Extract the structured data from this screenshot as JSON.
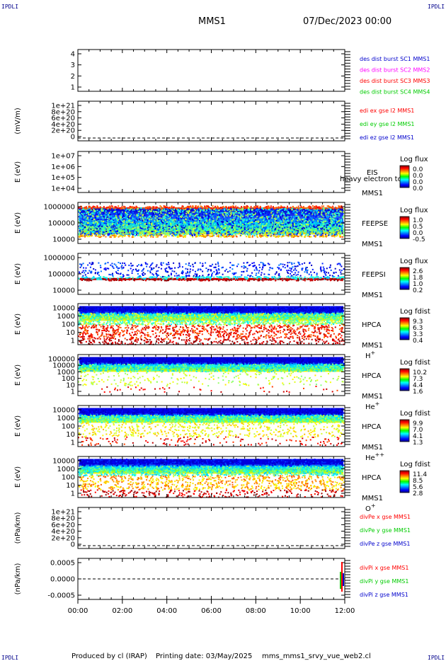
{
  "header": {
    "corner_label": "IPDLI",
    "mission": "MMS1",
    "date": "07/Dec/2023 00:00"
  },
  "footer": {
    "produced_by": "Produced by cl (IRAP)",
    "printing_date": "Printing date: 03/May/2025",
    "script": "mms_mms1_srvy_vue_web2.cl"
  },
  "colors": {
    "blue": "#0000cc",
    "magenta": "#ff00ff",
    "red": "#ff0000",
    "green": "#00cc00"
  },
  "chart_data": [
    {
      "id": "burst",
      "type": "line",
      "ylabel": "",
      "yticks": [
        "4",
        "3",
        "2",
        "1"
      ],
      "legend": [
        {
          "text": "des dist burst SC1 MMS1",
          "color": "#0000cc"
        },
        {
          "text": "des dist burst SC2 MMS2",
          "color": "#ff00ff"
        },
        {
          "text": "des dist burst SC3 MMS3",
          "color": "#ff0000"
        },
        {
          "text": "des dist burst SC4 MMS4",
          "color": "#00cc00"
        }
      ]
    },
    {
      "id": "edi",
      "type": "line",
      "ylabel": "(mV/m)",
      "yticks": [
        "1e+21",
        "8e+20",
        "6e+20",
        "4e+20",
        "2e+20",
        "0"
      ],
      "zero_line": true,
      "legend": [
        {
          "text": "edi ex gse l2 MMS1",
          "color": "#ff0000"
        },
        {
          "text": "edi ey gse l2 MMS1",
          "color": "#00cc00"
        },
        {
          "text": "edi ez gse l2 MMS1",
          "color": "#0000cc"
        }
      ]
    },
    {
      "id": "eis",
      "type": "heatmap",
      "ylabel": "E (eV)",
      "yticks": [
        "1e+07",
        "1e+06",
        "1e+05",
        "1e+04"
      ],
      "instrument": [
        "EIS",
        "MMS1"
      ],
      "overlay": "heavy electron to",
      "colorbar": {
        "title": "Log flux",
        "labels": [
          "0.0",
          "0.0",
          "0.0",
          "0.0"
        ]
      },
      "empty": true
    },
    {
      "id": "feepse",
      "type": "heatmap",
      "ylabel": "E (eV)",
      "yticks": [
        "1000000",
        "100000",
        "10000"
      ],
      "instrument": [
        "FEEPSE",
        "MMS1"
      ],
      "colorbar": {
        "title": "Log flux",
        "labels": [
          "1.0",
          "0.5",
          "0.0",
          "-0.5"
        ]
      },
      "pattern": "feepse"
    },
    {
      "id": "feepsi",
      "type": "heatmap",
      "ylabel": "E (eV)",
      "yticks": [
        "1000000",
        "100000",
        "10000"
      ],
      "instrument": [
        "FEEPSI",
        "MMS1"
      ],
      "colorbar": {
        "title": "Log flux",
        "labels": [
          "2.6",
          "1.8",
          "1.0",
          "0.2"
        ]
      },
      "pattern": "feepsi"
    },
    {
      "id": "hpca_h",
      "type": "heatmap",
      "ylabel": "E (eV)",
      "yticks": [
        "10000",
        "1000",
        "100",
        "10",
        "1"
      ],
      "instrument": [
        "HPCA",
        "MMS1"
      ],
      "species": "H",
      "charge": "+",
      "colorbar": {
        "title": "Log fdist",
        "labels": [
          "9.3",
          "6.3",
          "3.3",
          "0.4"
        ]
      },
      "pattern": "hpca_h"
    },
    {
      "id": "hpca_he",
      "type": "heatmap",
      "ylabel": "E (eV)",
      "yticks": [
        "100000",
        "10000",
        "1000",
        "100",
        "10",
        "1"
      ],
      "instrument": [
        "HPCA",
        "MMS1"
      ],
      "species": "He",
      "charge": "+",
      "colorbar": {
        "title": "Log fdist",
        "labels": [
          "10.2",
          "7.3",
          "4.4",
          "1.6"
        ]
      },
      "pattern": "hpca_he"
    },
    {
      "id": "hpca_he2",
      "type": "heatmap",
      "ylabel": "E (eV)",
      "yticks": [
        "10000",
        "1000",
        "100",
        "10",
        "1"
      ],
      "instrument": [
        "HPCA",
        "MMS1"
      ],
      "species": "He",
      "charge": "++",
      "colorbar": {
        "title": "Log fdist",
        "labels": [
          "9.9",
          "7.0",
          "4.1",
          "1.3"
        ]
      },
      "pattern": "hpca_he2"
    },
    {
      "id": "hpca_o",
      "type": "heatmap",
      "ylabel": "E (eV)",
      "yticks": [
        "10000",
        "1000",
        "100",
        "10",
        "1"
      ],
      "instrument": [
        "HPCA",
        "MMS1"
      ],
      "species": "O",
      "charge": "+",
      "colorbar": {
        "title": "Log fdist",
        "labels": [
          "11.4",
          "8.5",
          "5.6",
          "2.8"
        ]
      },
      "pattern": "hpca_o"
    },
    {
      "id": "divpe",
      "type": "line",
      "ylabel": "(nPa/km)",
      "yticks": [
        "1e+21",
        "8e+20",
        "6e+20",
        "4e+20",
        "2e+20",
        "0"
      ],
      "zero_line": true,
      "legend": [
        {
          "text": "divPe x gse MMS1",
          "color": "#ff0000"
        },
        {
          "text": "divPe y gse MMS1",
          "color": "#00cc00"
        },
        {
          "text": "divPe z gse MMS1",
          "color": "#0000cc"
        }
      ]
    },
    {
      "id": "divpi",
      "type": "line",
      "ylabel": "(nPa/km)",
      "yticks": [
        "0.0005",
        "0.0000",
        "-0.0005"
      ],
      "zero_line": true,
      "legend": [
        {
          "text": "divPi x gse MMS1",
          "color": "#ff0000"
        },
        {
          "text": "divPi y gse MMS1",
          "color": "#00cc00"
        },
        {
          "text": "divPi z gse MMS1",
          "color": "#0000cc"
        }
      ],
      "spike": true
    }
  ],
  "x_axis": {
    "labels": [
      "00:00",
      "02:00",
      "04:00",
      "06:00",
      "08:00",
      "10:00",
      "12:00"
    ]
  }
}
